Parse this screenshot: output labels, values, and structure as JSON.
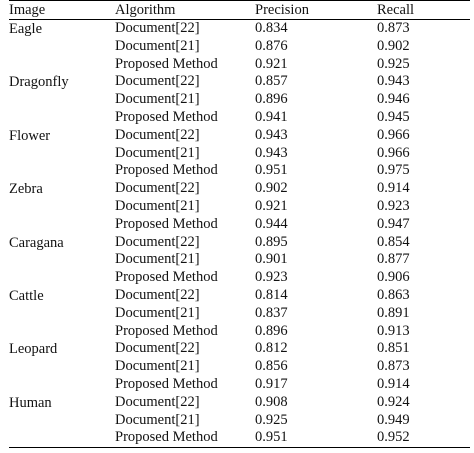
{
  "table": {
    "headers": [
      "Image",
      "Algorithm",
      "Precision",
      "Recall"
    ],
    "groups": [
      {
        "image": "Eagle",
        "rows": [
          {
            "algorithm": "Document[22]",
            "precision": "0.834",
            "recall": "0.873"
          },
          {
            "algorithm": "Document[21]",
            "precision": "0.876",
            "recall": "0.902"
          },
          {
            "algorithm": "Proposed Method",
            "precision": "0.921",
            "recall": "0.925"
          }
        ]
      },
      {
        "image": "Dragonfly",
        "rows": [
          {
            "algorithm": "Document[22]",
            "precision": "0.857",
            "recall": "0.943"
          },
          {
            "algorithm": "Document[21]",
            "precision": "0.896",
            "recall": "0.946"
          },
          {
            "algorithm": "Proposed Method",
            "precision": "0.941",
            "recall": "0.945"
          }
        ]
      },
      {
        "image": "Flower",
        "rows": [
          {
            "algorithm": "Document[22]",
            "precision": "0.943",
            "recall": "0.966"
          },
          {
            "algorithm": "Document[21]",
            "precision": "0.943",
            "recall": "0.966"
          },
          {
            "algorithm": "Proposed Method",
            "precision": "0.951",
            "recall": "0.975"
          }
        ]
      },
      {
        "image": "Zebra",
        "rows": [
          {
            "algorithm": "Document[22]",
            "precision": "0.902",
            "recall": "0.914"
          },
          {
            "algorithm": "Document[21]",
            "precision": "0.921",
            "recall": "0.923"
          },
          {
            "algorithm": "Proposed Method",
            "precision": "0.944",
            "recall": "0.947"
          }
        ]
      },
      {
        "image": "Caragana",
        "rows": [
          {
            "algorithm": "Document[22]",
            "precision": "0.895",
            "recall": "0.854"
          },
          {
            "algorithm": "Document[21]",
            "precision": "0.901",
            "recall": "0.877"
          },
          {
            "algorithm": "Proposed Method",
            "precision": "0.923",
            "recall": "0.906"
          }
        ]
      },
      {
        "image": "Cattle",
        "rows": [
          {
            "algorithm": "Document[22]",
            "precision": "0.814",
            "recall": "0.863"
          },
          {
            "algorithm": "Document[21]",
            "precision": "0.837",
            "recall": "0.891"
          },
          {
            "algorithm": "Proposed Method",
            "precision": "0.896",
            "recall": "0.913"
          }
        ]
      },
      {
        "image": "Leopard",
        "rows": [
          {
            "algorithm": "Document[22]",
            "precision": "0.812",
            "recall": "0.851"
          },
          {
            "algorithm": "Document[21]",
            "precision": "0.856",
            "recall": "0.873"
          },
          {
            "algorithm": "Proposed Method",
            "precision": "0.917",
            "recall": "0.914"
          }
        ]
      },
      {
        "image": "Human",
        "rows": [
          {
            "algorithm": "Document[22]",
            "precision": "0.908",
            "recall": "0.924"
          },
          {
            "algorithm": "Document[21]",
            "precision": "0.925",
            "recall": "0.949"
          },
          {
            "algorithm": "Proposed Method",
            "precision": "0.951",
            "recall": "0.952"
          }
        ]
      }
    ]
  }
}
